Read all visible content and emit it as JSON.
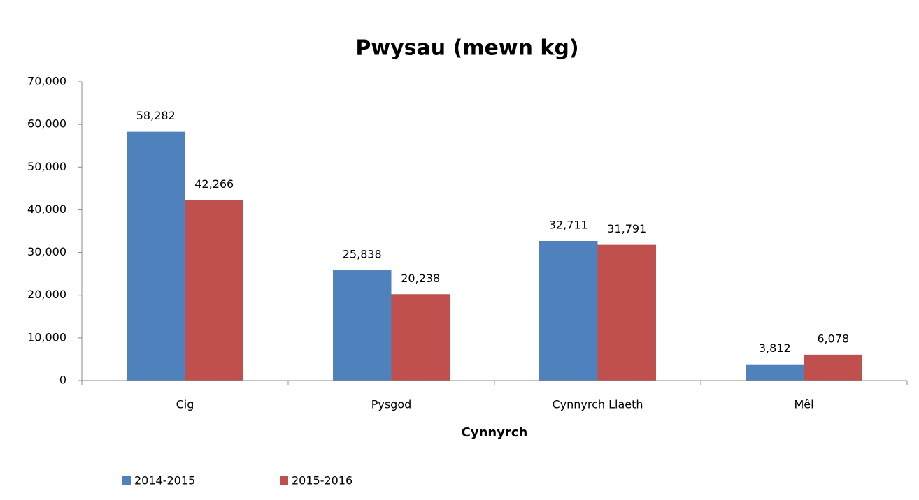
{
  "chart_data": {
    "type": "bar",
    "title": "Pwysau (mewn kg)",
    "x_label": "Cynnyrch",
    "categories": [
      "Cig",
      "Pysgod",
      "Cynnyrch Llaeth",
      "Mêl"
    ],
    "series": [
      {
        "name": "2014-2015",
        "color": "#4f81bd",
        "values": [
          58282,
          25838,
          32711,
          3812
        ],
        "value_labels": [
          "58,282",
          "25,838",
          "32,711",
          "3,812"
        ]
      },
      {
        "name": "2015-2016",
        "color": "#c0504d",
        "values": [
          42266,
          20238,
          31791,
          6078
        ],
        "value_labels": [
          "42,266",
          "20,238",
          "31,791",
          "6,078"
        ]
      }
    ],
    "ylim": [
      0,
      70000
    ],
    "yticks": [
      0,
      {
        "value": 10000,
        "label": "10,000"
      },
      {
        "value": 20000,
        "label": "20,000"
      },
      {
        "value": 30000,
        "label": "30,000"
      },
      {
        "value": 40000,
        "label": "40,000"
      },
      {
        "value": 50000,
        "label": "50,000"
      },
      {
        "value": 60000,
        "label": "60,000"
      },
      {
        "value": 70000,
        "label": "70,000"
      }
    ],
    "grid": false,
    "legend": "bottom-left"
  }
}
